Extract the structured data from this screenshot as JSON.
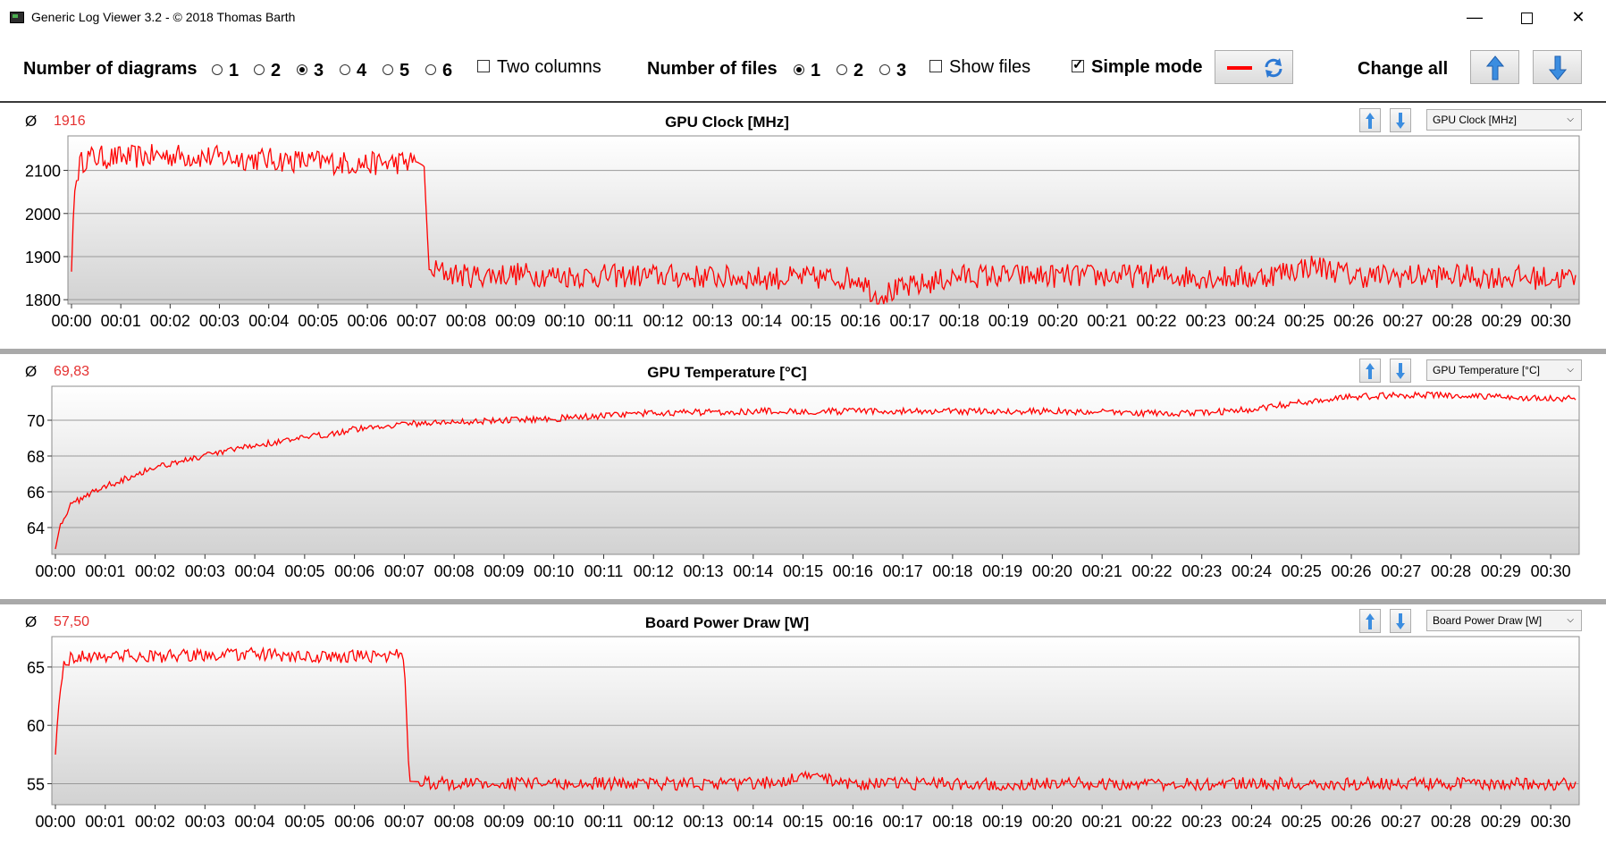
{
  "window": {
    "title": "Generic Log Viewer 3.2 - © 2018 Thomas Barth"
  },
  "toolbar": {
    "num_diagrams_label": "Number of diagrams",
    "diagram_options": [
      "1",
      "2",
      "3",
      "4",
      "5",
      "6"
    ],
    "diagram_selected": "3",
    "two_columns_label": "Two columns",
    "two_columns_checked": false,
    "num_files_label": "Number of files",
    "file_options": [
      "1",
      "2",
      "3"
    ],
    "file_selected": "1",
    "show_files_label": "Show files",
    "show_files_checked": false,
    "simple_mode_label": "Simple mode",
    "simple_mode_checked": true,
    "change_all_label": "Change all"
  },
  "colors": {
    "series": "#ff0000",
    "avg": "#e53030",
    "plot_top": "#ffffff",
    "plot_bottom": "#d2d2d2",
    "grid": "#9a9a9a"
  },
  "icons": [
    "minimize-icon",
    "maximize-icon",
    "close-icon",
    "arrow-up-icon",
    "arrow-down-icon",
    "refresh-icon",
    "chevron-down-icon"
  ],
  "x_ticks": [
    "00:00",
    "00:01",
    "00:02",
    "00:03",
    "00:04",
    "00:05",
    "00:06",
    "00:07",
    "00:08",
    "00:09",
    "00:10",
    "00:11",
    "00:12",
    "00:13",
    "00:14",
    "00:15",
    "00:16",
    "00:17",
    "00:18",
    "00:19",
    "00:20",
    "00:21",
    "00:22",
    "00:23",
    "00:24",
    "00:25",
    "00:26",
    "00:27",
    "00:28",
    "00:29",
    "00:30"
  ],
  "diagrams": [
    {
      "avg_symbol": "Ø",
      "avg": "1916",
      "title": "GPU Clock [MHz]",
      "select": "GPU Clock [MHz]"
    },
    {
      "avg_symbol": "Ø",
      "avg": "69,83",
      "title": "GPU Temperature [°C]",
      "select": "GPU Temperature [°C]"
    },
    {
      "avg_symbol": "Ø",
      "avg": "57,50",
      "title": "Board Power Draw [W]",
      "select": "Board Power Draw [W]"
    }
  ],
  "chart_data": [
    {
      "type": "line",
      "title": "GPU Clock [MHz]",
      "ylim": [
        1790,
        2180
      ],
      "yticks": [
        1800,
        1900,
        2000,
        2100
      ],
      "xlim_minutes": [
        0,
        30.5
      ],
      "series": [
        {
          "x_minutes": [
            0,
            0.05,
            0.15,
            0.3,
            1,
            2,
            3,
            4,
            5,
            6,
            7,
            7.15,
            7.25,
            8,
            9,
            10,
            12,
            14,
            16,
            16.3,
            18,
            20,
            22,
            24,
            25.2,
            26,
            28,
            30,
            30.4
          ],
          "values": [
            1865,
            2040,
            2110,
            2130,
            2130,
            2135,
            2130,
            2125,
            2120,
            2115,
            2120,
            2110,
            1870,
            1855,
            1860,
            1855,
            1855,
            1850,
            1850,
            1810,
            1855,
            1855,
            1855,
            1850,
            1880,
            1855,
            1855,
            1850,
            1850
          ]
        }
      ]
    },
    {
      "type": "line",
      "title": "GPU Temperature [°C]",
      "ylim": [
        62.5,
        71.9
      ],
      "yticks": [
        64,
        66,
        68,
        70
      ],
      "xlim_minutes": [
        0,
        30.5
      ],
      "series": [
        {
          "x_minutes": [
            0,
            0.1,
            0.3,
            0.6,
            1,
            2,
            3,
            4,
            5,
            6,
            7,
            8,
            9,
            10,
            12,
            14,
            16,
            18,
            20,
            22,
            23,
            24,
            25,
            26,
            27,
            28,
            29,
            30,
            30.4
          ],
          "values": [
            62.8,
            64.2,
            65.2,
            65.8,
            66.3,
            67.4,
            68.0,
            68.6,
            69.0,
            69.5,
            69.8,
            69.9,
            70.0,
            70.1,
            70.4,
            70.5,
            70.5,
            70.5,
            70.5,
            70.4,
            70.4,
            70.6,
            71.0,
            71.3,
            71.4,
            71.4,
            71.3,
            71.2,
            71.2
          ]
        }
      ]
    },
    {
      "type": "line",
      "title": "Board Power Draw [W]",
      "ylim": [
        53.2,
        67.6
      ],
      "yticks": [
        55,
        60,
        65
      ],
      "xlim_minutes": [
        0,
        30.5
      ],
      "series": [
        {
          "x_minutes": [
            0,
            0.05,
            0.15,
            0.3,
            1,
            2,
            3,
            4,
            5,
            6,
            6.9,
            7.0,
            7.1,
            8,
            10,
            12,
            14,
            15.3,
            16,
            18,
            20,
            22,
            24,
            26,
            28,
            30,
            30.4
          ],
          "values": [
            57.5,
            61,
            65,
            65.8,
            66,
            65.9,
            66,
            66.1,
            65.8,
            65.9,
            66,
            65.5,
            55.2,
            55.0,
            55.0,
            55.0,
            55.0,
            55.6,
            55.0,
            55.0,
            55.0,
            55.0,
            55.0,
            55.0,
            55.0,
            55.0,
            55.0
          ]
        }
      ]
    }
  ]
}
